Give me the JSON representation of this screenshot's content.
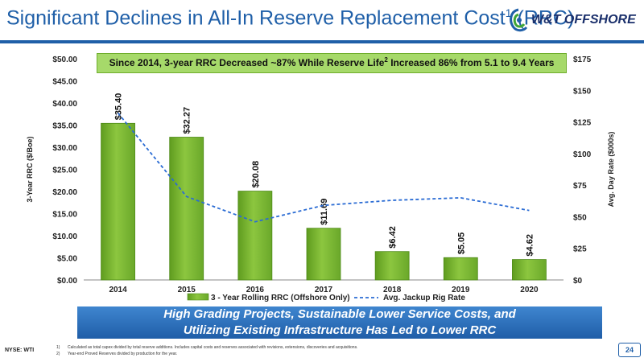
{
  "header": {
    "title": "Significant Declines in All-In Reserve Replacement Cost",
    "title_sup": "1",
    "title_suffix": " (RRC)",
    "logo_text": "W&T OFFSHORE"
  },
  "banner": {
    "text_a": "Since 2014, 3-year RRC Decreased ~87% While Reserve Life",
    "sup": "2",
    "text_b": " Increased 86% from 5.1 to 9.4 Years"
  },
  "chart_data": {
    "type": "bar",
    "categories": [
      "2014",
      "2015",
      "2016",
      "2017",
      "2018",
      "2019",
      "2020"
    ],
    "series": [
      {
        "name": "3 - Year Rolling RRC (Offshore Only)",
        "type": "bar",
        "axis": "left",
        "values": [
          35.4,
          32.27,
          20.08,
          11.69,
          6.42,
          5.05,
          4.62
        ],
        "labels": [
          "$35.40",
          "$32.27",
          "$20.08",
          "$11.69",
          "$6.42",
          "$5.05",
          "$4.62"
        ],
        "color": "#8cc63f"
      },
      {
        "name": "Avg. Jackup Rig Rate",
        "type": "line",
        "axis": "right",
        "style": "dashed",
        "values": [
          132,
          66,
          46,
          59,
          63,
          65,
          55
        ],
        "color": "#2b6cd4"
      }
    ],
    "ylabel": "3-Year RRC ($/Boe)",
    "y2label": "Avg. Day Rate ($000s)",
    "ylim": [
      0,
      50
    ],
    "y2lim": [
      0,
      175
    ],
    "yticks": [
      "$0.00",
      "$5.00",
      "$10.00",
      "$15.00",
      "$20.00",
      "$25.00",
      "$30.00",
      "$35.00",
      "$40.00",
      "$45.00",
      "$50.00"
    ],
    "y2ticks": [
      "$0",
      "$25",
      "$50",
      "$75",
      "$100",
      "$125",
      "$150",
      "$175"
    ],
    "legend_position": "bottom"
  },
  "bottom_box": {
    "line1": "High Grading Projects, Sustainable Lower Service Costs, and",
    "line2": "Utilizing Existing Infrastructure Has Led to Lower RRC"
  },
  "footer": {
    "ticker": "NYSE: WTI",
    "footnotes": [
      {
        "num": "1)",
        "text": "Calculated as total capex divided by total reserve additions. Includes capital costs and reserves associated with revisions, extensions, discoveries and acquisitions."
      },
      {
        "num": "2)",
        "text": "Year-end Proved Reserves divided by production for the year."
      }
    ],
    "page": "24"
  },
  "colors": {
    "brand_blue": "#1f5fa8",
    "bar_green": "#8cc63f",
    "banner_green": "#a6d96a",
    "line_blue": "#2b6cd4"
  }
}
